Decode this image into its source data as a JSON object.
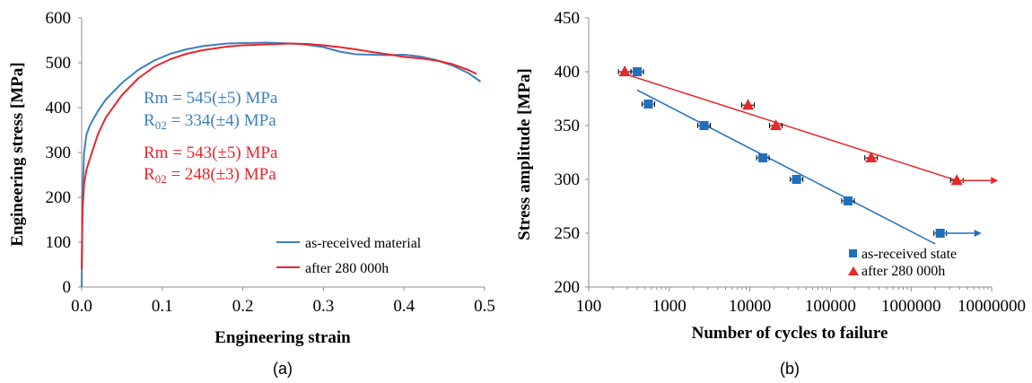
{
  "colors": {
    "blue": "#3F7FBF",
    "red": "#E8262B",
    "blue_marker": "#1F6FBF",
    "red_marker": "#E8262B"
  },
  "chart_data": [
    {
      "type": "line",
      "panel_label": "(a)",
      "title": "",
      "xlabel": "Engineering strain",
      "ylabel": "Engineering stress [MPa]",
      "xlim": [
        0,
        0.5
      ],
      "ylim": [
        0,
        600
      ],
      "x_ticks": [
        "0.0",
        "0.1",
        "0.2",
        "0.3",
        "0.4",
        "0.5"
      ],
      "y_ticks": [
        "0",
        "100",
        "200",
        "300",
        "400",
        "500",
        "600"
      ],
      "grid": false,
      "legend_position": "bottom-right",
      "series": [
        {
          "name": "as-received material",
          "color": "#3F7FBF",
          "x": [
            0,
            0.001,
            0.003,
            0.006,
            0.01,
            0.02,
            0.03,
            0.05,
            0.07,
            0.09,
            0.11,
            0.13,
            0.15,
            0.18,
            0.2,
            0.23,
            0.26,
            0.28,
            0.3,
            0.32,
            0.34,
            0.36,
            0.38,
            0.4,
            0.42,
            0.44,
            0.46,
            0.48,
            0.495
          ],
          "y": [
            0,
            200,
            300,
            340,
            360,
            392,
            418,
            455,
            484,
            505,
            520,
            530,
            537,
            543,
            544,
            545,
            543,
            540,
            535,
            525,
            519,
            518,
            517,
            518,
            514,
            506,
            494,
            477,
            458
          ]
        },
        {
          "name": "after 280 000h",
          "color": "#E8262B",
          "x": [
            0,
            0.001,
            0.003,
            0.006,
            0.01,
            0.02,
            0.03,
            0.05,
            0.07,
            0.09,
            0.11,
            0.13,
            0.15,
            0.18,
            0.2,
            0.23,
            0.26,
            0.28,
            0.3,
            0.32,
            0.34,
            0.36,
            0.38,
            0.4,
            0.42,
            0.44,
            0.46,
            0.48,
            0.49
          ],
          "y": [
            40,
            170,
            230,
            262,
            285,
            340,
            378,
            428,
            465,
            491,
            508,
            520,
            528,
            536,
            539,
            541,
            543,
            542,
            539,
            535,
            530,
            524,
            519,
            513,
            510,
            505,
            497,
            484,
            475
          ]
        }
      ],
      "annotations": {
        "blue_rm": "Rm = 545(±5) MPa",
        "blue_r02_main": "R",
        "blue_r02_sub": "02",
        "blue_r02_rest": " = 334(±4) MPa",
        "red_rm": "Rm = 543(±5) MPa",
        "red_r02_main": "R",
        "red_r02_sub": "02",
        "red_r02_rest": " = 248(±3) MPa"
      }
    },
    {
      "type": "scatter",
      "panel_label": "(b)",
      "title": "",
      "xlabel": "Number of cycles to failure",
      "ylabel": "Stress amplitude [MPa]",
      "x_scale": "log",
      "xlim": [
        100,
        10000000
      ],
      "ylim": [
        200,
        450
      ],
      "x_ticks": [
        "100",
        "1000",
        "10000",
        "100000",
        "1000000",
        "10000000"
      ],
      "y_ticks": [
        "200",
        "250",
        "300",
        "350",
        "400",
        "450"
      ],
      "grid": false,
      "legend_position": "bottom-right",
      "series": [
        {
          "name": "as-received state",
          "color": "#1F6FBF",
          "marker": "square",
          "x": [
            400,
            550,
            2700,
            14500,
            38000,
            165000,
            2300000
          ],
          "y": [
            400,
            370,
            350,
            320,
            300,
            280,
            250
          ],
          "runout": [
            false,
            false,
            false,
            false,
            false,
            false,
            true
          ],
          "trend": {
            "x": [
              400,
              2000000
            ],
            "y": [
              383,
              240
            ]
          }
        },
        {
          "name": "after 280 000h",
          "color": "#E8262B",
          "marker": "triangle",
          "x": [
            280,
            9500,
            21000,
            320000,
            3700000
          ],
          "y": [
            400,
            369,
            350,
            320,
            299
          ],
          "runout": [
            false,
            false,
            false,
            false,
            true
          ],
          "trend": {
            "x": [
              280,
              3700000
            ],
            "y": [
              398,
              299
            ]
          }
        }
      ]
    }
  ]
}
